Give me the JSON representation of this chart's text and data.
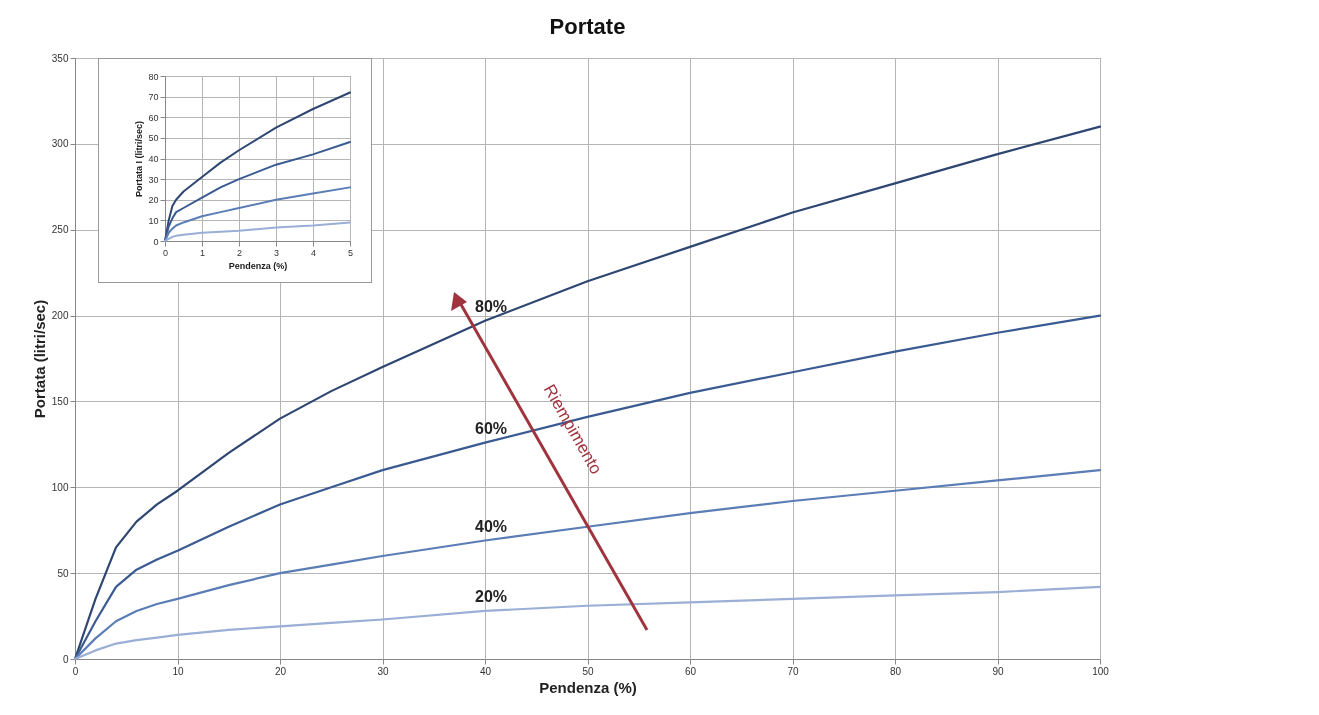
{
  "chart_data": [
    {
      "type": "line",
      "title": "Portate",
      "xlabel": "Pendenza (%)",
      "ylabel": "Portata (litri/sec)",
      "x": [
        0,
        2,
        4,
        6,
        8,
        10,
        15,
        20,
        25,
        30,
        40,
        50,
        60,
        70,
        80,
        90,
        100
      ],
      "series": [
        {
          "name": "80%",
          "color": "#2e4672",
          "values": [
            0,
            35,
            65,
            80,
            90,
            98,
            120,
            140,
            156,
            170,
            197,
            220,
            240,
            260,
            277,
            294,
            310
          ]
        },
        {
          "name": "60%",
          "color": "#3a5a92",
          "values": [
            0,
            22,
            42,
            52,
            58,
            63,
            77,
            90,
            100,
            110,
            126,
            141,
            155,
            167,
            179,
            190,
            200
          ]
        },
        {
          "name": "40%",
          "color": "#5b7db6",
          "values": [
            0,
            12,
            22,
            28,
            32,
            35,
            43,
            50,
            55,
            60,
            69,
            77,
            85,
            92,
            98,
            104,
            110
          ]
        },
        {
          "name": "20%",
          "color": "#9aaed6",
          "values": [
            0,
            5,
            9,
            11,
            12.5,
            14,
            17,
            19,
            21,
            23,
            28,
            31,
            33,
            35,
            37,
            39,
            42
          ]
        }
      ],
      "xlim": [
        0,
        100
      ],
      "xticks": [
        0,
        10,
        20,
        30,
        40,
        50,
        60,
        70,
        80,
        90,
        100
      ],
      "ylim": [
        0,
        350
      ],
      "yticks": [
        0,
        50,
        100,
        150,
        200,
        250,
        300,
        350
      ],
      "grid": true,
      "annotations": [
        "Riempimento"
      ]
    },
    {
      "type": "line",
      "xlabel": "Pendenza (%)",
      "ylabel": "Portata I (litri/sec)",
      "x": [
        0,
        0.1,
        0.2,
        0.3,
        0.5,
        1,
        1.5,
        2,
        3,
        4,
        5
      ],
      "series": [
        {
          "color": "#2e4672",
          "values": [
            0,
            10,
            17,
            20,
            24,
            31,
            38,
            44,
            55,
            64,
            72
          ]
        },
        {
          "color": "#3a5a92",
          "values": [
            0,
            7,
            11,
            14,
            16,
            21,
            26,
            30,
            37,
            42,
            48
          ]
        },
        {
          "color": "#5b7db6",
          "values": [
            0,
            4,
            6,
            7.5,
            9,
            12,
            14,
            16,
            20,
            23,
            26
          ]
        },
        {
          "color": "#9aaed6",
          "values": [
            0,
            1,
            2,
            2.5,
            3,
            4,
            4.5,
            5,
            6.5,
            7.5,
            9
          ]
        }
      ],
      "xlim": [
        0,
        5
      ],
      "xticks": [
        0,
        1,
        2,
        3,
        4,
        5
      ],
      "ylim": [
        0,
        80
      ],
      "yticks": [
        0,
        10,
        20,
        30,
        40,
        50,
        60,
        70,
        80
      ],
      "grid": true
    }
  ]
}
